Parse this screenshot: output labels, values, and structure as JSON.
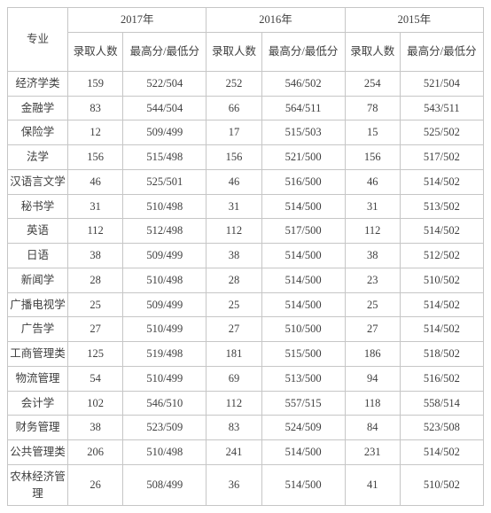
{
  "table": {
    "header": {
      "major": "专业",
      "years": [
        "2017年",
        "2016年",
        "2015年"
      ],
      "sub_count": "录取人数",
      "sub_score": "最高分/最低分"
    },
    "rows": [
      {
        "major": "经济学类",
        "y2017n": "159",
        "y2017s": "522/504",
        "y2016n": "252",
        "y2016s": "546/502",
        "y2015n": "254",
        "y2015s": "521/504"
      },
      {
        "major": "金融学",
        "y2017n": "83",
        "y2017s": "544/504",
        "y2016n": "66",
        "y2016s": "564/511",
        "y2015n": "78",
        "y2015s": "543/511"
      },
      {
        "major": "保险学",
        "y2017n": "12",
        "y2017s": "509/499",
        "y2016n": "17",
        "y2016s": "515/503",
        "y2015n": "15",
        "y2015s": "525/502"
      },
      {
        "major": "法学",
        "y2017n": "156",
        "y2017s": "515/498",
        "y2016n": "156",
        "y2016s": "521/500",
        "y2015n": "156",
        "y2015s": "517/502"
      },
      {
        "major": "汉语言文学",
        "y2017n": "46",
        "y2017s": "525/501",
        "y2016n": "46",
        "y2016s": "516/500",
        "y2015n": "46",
        "y2015s": "514/502"
      },
      {
        "major": "秘书学",
        "y2017n": "31",
        "y2017s": "510/498",
        "y2016n": "31",
        "y2016s": "514/500",
        "y2015n": "31",
        "y2015s": "513/502"
      },
      {
        "major": "英语",
        "y2017n": "112",
        "y2017s": "512/498",
        "y2016n": "112",
        "y2016s": "517/500",
        "y2015n": "112",
        "y2015s": "514/502"
      },
      {
        "major": "日语",
        "y2017n": "38",
        "y2017s": "509/499",
        "y2016n": "38",
        "y2016s": "514/500",
        "y2015n": "38",
        "y2015s": "512/502"
      },
      {
        "major": "新闻学",
        "y2017n": "28",
        "y2017s": "510/498",
        "y2016n": "28",
        "y2016s": "514/500",
        "y2015n": "23",
        "y2015s": "510/502"
      },
      {
        "major": "广播电视学",
        "y2017n": "25",
        "y2017s": "509/499",
        "y2016n": "25",
        "y2016s": "514/500",
        "y2015n": "25",
        "y2015s": "514/502"
      },
      {
        "major": "广告学",
        "y2017n": "27",
        "y2017s": "510/499",
        "y2016n": "27",
        "y2016s": "510/500",
        "y2015n": "27",
        "y2015s": "514/502"
      },
      {
        "major": "工商管理类",
        "y2017n": "125",
        "y2017s": "519/498",
        "y2016n": "181",
        "y2016s": "515/500",
        "y2015n": "186",
        "y2015s": "518/502"
      },
      {
        "major": "物流管理",
        "y2017n": "54",
        "y2017s": "510/499",
        "y2016n": "69",
        "y2016s": "513/500",
        "y2015n": "94",
        "y2015s": "516/502"
      },
      {
        "major": "会计学",
        "y2017n": "102",
        "y2017s": "546/510",
        "y2016n": "112",
        "y2016s": "557/515",
        "y2015n": "118",
        "y2015s": "558/514"
      },
      {
        "major": "财务管理",
        "y2017n": "38",
        "y2017s": "523/509",
        "y2016n": "83",
        "y2016s": "524/509",
        "y2015n": "84",
        "y2015s": "523/508"
      },
      {
        "major": "公共管理类",
        "y2017n": "206",
        "y2017s": "510/498",
        "y2016n": "241",
        "y2016s": "514/500",
        "y2015n": "231",
        "y2015s": "514/502"
      },
      {
        "major": "农林经济管理",
        "y2017n": "26",
        "y2017s": "508/499",
        "y2016n": "36",
        "y2016s": "514/500",
        "y2015n": "41",
        "y2015s": "510/502"
      }
    ]
  }
}
